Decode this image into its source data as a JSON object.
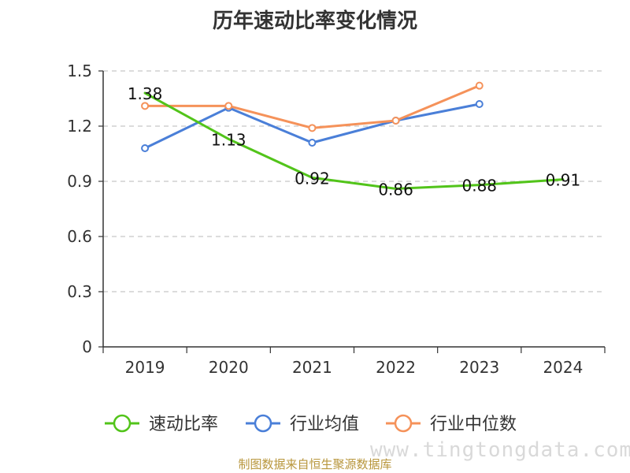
{
  "title": "历年速动比率变化情况",
  "watermark": "www.tingtongdata.com",
  "source": "制图数据来自恒生聚源数据库",
  "chart_data": {
    "type": "line",
    "title": "历年速动比率变化情况",
    "categories": [
      "2019",
      "2020",
      "2021",
      "2022",
      "2023",
      "2024"
    ],
    "ylim": [
      0,
      1.5
    ],
    "yticks": [
      "0",
      "0.3",
      "0.6",
      "0.9",
      "1.2",
      "1.5"
    ],
    "grid": true,
    "legend_position": "bottom",
    "series": [
      {
        "name": "速动比率",
        "color": "#52c41a",
        "values": [
          1.38,
          1.13,
          0.92,
          0.86,
          0.88,
          0.91
        ],
        "labels": [
          "1.38",
          "1.13",
          "0.92",
          "0.86",
          "0.88",
          "0.91"
        ],
        "show_labels": true,
        "markers": false
      },
      {
        "name": "行业均值",
        "color": "#4a7fd8",
        "values": [
          1.08,
          1.3,
          1.11,
          1.23,
          1.32,
          null
        ],
        "show_labels": false,
        "markers": true
      },
      {
        "name": "行业中位数",
        "color": "#f5925a",
        "values": [
          1.31,
          1.31,
          1.19,
          1.23,
          1.42,
          null
        ],
        "show_labels": false,
        "markers": true
      }
    ]
  }
}
